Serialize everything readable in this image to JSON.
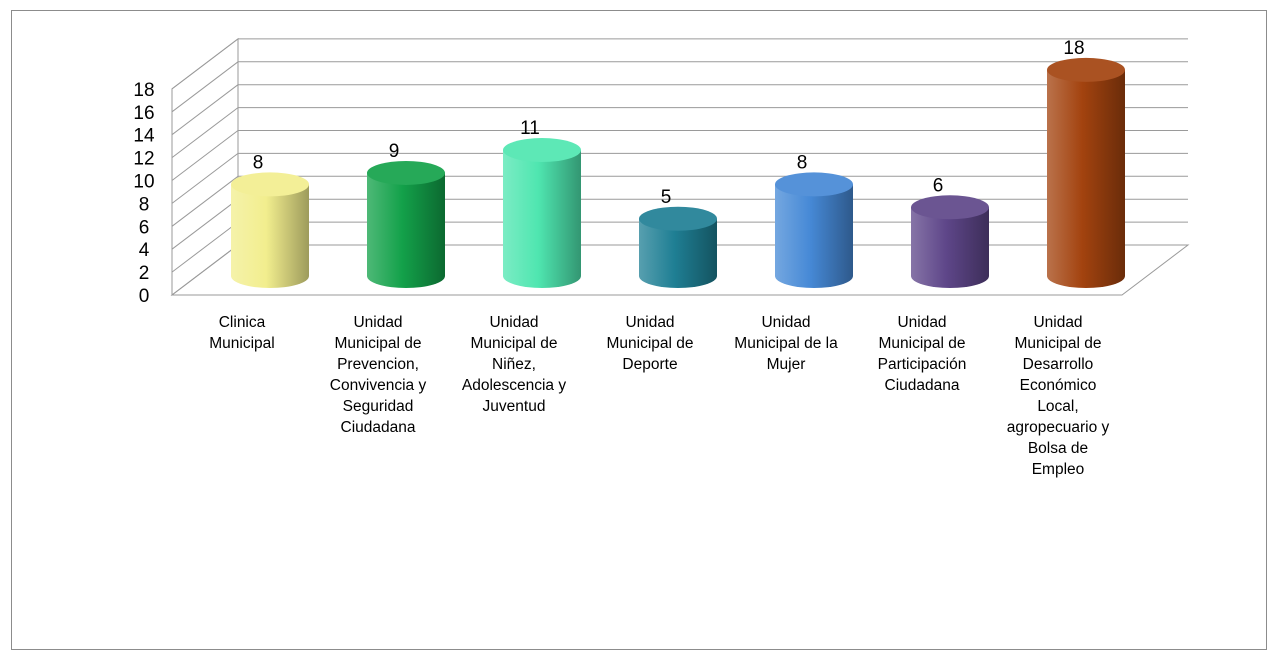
{
  "chart_data": {
    "type": "bar",
    "style": "3d-cylinder",
    "categories": [
      "Clinica Municipal",
      "Unidad Municipal de Prevencion, Convivencia y Seguridad Ciudadana",
      "Unidad Municipal de Niñez, Adolescencia y Juventud",
      "Unidad Municipal de Deporte",
      "Unidad Municipal de la Mujer",
      "Unidad Municipal de Participación Ciudadana",
      "Unidad Municipal de Desarrollo Económico Local, agropecuario y Bolsa de Empleo"
    ],
    "category_lines": [
      "Clinica\nMunicipal",
      "Unidad\nMunicipal de\nPrevencion,\nConvivencia y\nSeguridad\nCiudadana",
      "Unidad\nMunicipal de\nNiñez,\nAdolescencia y\nJuventud",
      "Unidad\nMunicipal de\nDeporte",
      "Unidad\nMunicipal de la\nMujer",
      "Unidad\nMunicipal de\nParticipación\nCiudadana",
      "Unidad\nMunicipal de\nDesarrollo\nEconómico\nLocal,\nagropecuario y\nBolsa de\nEmpleo"
    ],
    "values": [
      8,
      9,
      11,
      5,
      8,
      6,
      18
    ],
    "colors": [
      "#f2ee8e",
      "#13a14a",
      "#4fe6b0",
      "#1f7f94",
      "#4689d6",
      "#5e4689",
      "#a3430f"
    ],
    "ylim": [
      0,
      18
    ],
    "yticks": [
      0,
      2,
      4,
      6,
      8,
      10,
      12,
      14,
      16,
      18
    ],
    "grid": true,
    "legend": "none",
    "title": "",
    "xlabel": "",
    "ylabel": ""
  }
}
